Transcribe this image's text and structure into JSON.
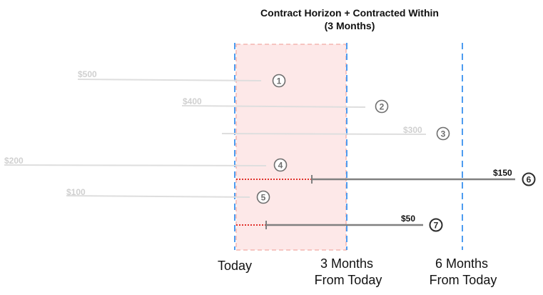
{
  "title": [
    "Contract Horizon + Contracted Within",
    "(3 Months)"
  ],
  "colors": {
    "window_fill": "#fde8e8",
    "window_border": "#f4b6b0",
    "divider": "#4d9cf0",
    "faded_line": "#dedede",
    "active_line": "#808080",
    "dotted": "#e0312b",
    "badge_faded": "#6f6f6f",
    "badge_active": "#2d2d2d"
  },
  "markers": [
    {
      "label": [
        "Today"
      ]
    },
    {
      "label": [
        "3 Months",
        "From Today"
      ]
    },
    {
      "label": [
        "6 Months",
        "From Today"
      ]
    }
  ],
  "contracts": [
    {
      "id": "1",
      "amount": "$500",
      "active": false
    },
    {
      "id": "2",
      "amount": "$400",
      "active": false
    },
    {
      "id": "3",
      "amount": "$300",
      "active": false
    },
    {
      "id": "4",
      "amount": "$200",
      "active": false
    },
    {
      "id": "5",
      "amount": "$100",
      "active": false
    },
    {
      "id": "6",
      "amount": "$150",
      "active": true
    },
    {
      "id": "7",
      "amount": "$50",
      "active": true
    }
  ]
}
